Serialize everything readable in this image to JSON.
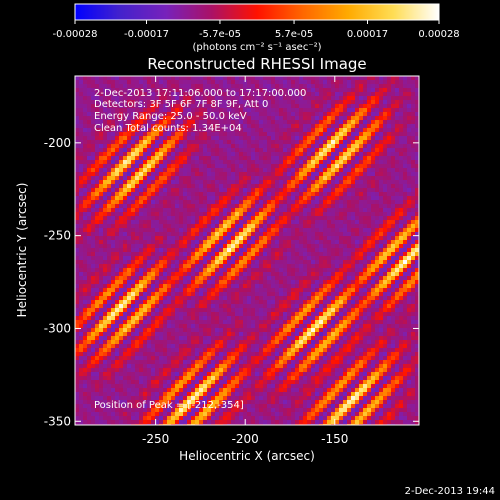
{
  "colorbar": {
    "tick_labels": [
      "-0.00028",
      "-0.00017",
      "-5.7e-05",
      "5.7e-05",
      "0.00017",
      "0.00028"
    ],
    "tick_values": [
      -0.00028,
      -0.00017,
      -5.7e-05,
      5.7e-05,
      0.00017,
      0.00028
    ],
    "range": [
      -0.00028,
      0.00028
    ],
    "units_label": "(photons cm⁻² s⁻¹ asec⁻²)",
    "palette": [
      "#0000ff",
      "#4422cc",
      "#7722bb",
      "#aa1166",
      "#ff1100",
      "#ff6600",
      "#ffaa00",
      "#ffdd55",
      "#ffffff"
    ]
  },
  "info": {
    "time_range": "2-Dec-2013 17:11:06.000 to 17:17:00.000",
    "detectors": "Detectors: 3F 5F 6F 7F 8F 9F, Att 0",
    "energy": "Energy Range: 25.0 - 50.0 keV",
    "clean": "Clean    Total counts: 1.34E+04",
    "peak": "Position of Peak = [-212,-354]"
  },
  "footer": {
    "timestamp": "2-Dec-2013 19:44"
  },
  "chart_data": {
    "type": "heatmap",
    "title": "Reconstructed RHESSI Image",
    "xlabel": "Heliocentric X (arcsec)",
    "ylabel": "Heliocentric Y (arcsec)",
    "xlim": [
      -295,
      -103
    ],
    "ylim": [
      -352,
      -164
    ],
    "xticks": [
      -250,
      -200,
      -150
    ],
    "yticks": [
      -200,
      -250,
      -300,
      -350
    ],
    "xtick_labels": [
      "-250",
      "-200",
      "-150"
    ],
    "ytick_labels": [
      "-200",
      "-250",
      "-300",
      "-350"
    ],
    "peak": [
      -212,
      -354
    ],
    "bright_regions": [
      {
        "x": -150,
        "y": -205
      },
      {
        "x": -208,
        "y": -253
      },
      {
        "x": -262,
        "y": -213
      },
      {
        "x": -112,
        "y": -262
      },
      {
        "x": -160,
        "y": -300
      },
      {
        "x": -228,
        "y": -338
      },
      {
        "x": -268,
        "y": -290
      },
      {
        "x": -140,
        "y": -340
      }
    ]
  }
}
